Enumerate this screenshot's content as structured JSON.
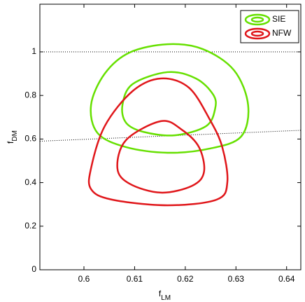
{
  "chart_data": {
    "type": "contour",
    "xlabel": {
      "main": "f",
      "sub": "LM"
    },
    "ylabel": {
      "main": "f",
      "sub": "DM"
    },
    "xlim": [
      0.5913,
      0.6428
    ],
    "ylim": [
      0,
      1.2187
    ],
    "xticks": [
      0.6,
      0.61,
      0.62,
      0.63,
      0.64
    ],
    "yticks": [
      0,
      0.2,
      0.4,
      0.6,
      0.8,
      1
    ],
    "legend": "upper right",
    "reference_lines": [
      {
        "x": [
          0.5913,
          0.6428
        ],
        "y": [
          1,
          1
        ]
      },
      {
        "x": [
          0.5913,
          0.6428
        ],
        "y": [
          0.59,
          0.64
        ]
      }
    ],
    "series": [
      {
        "name": "SIE",
        "color": "#66e000",
        "contours": [
          {
            "x": [
              0.6014,
              0.6041,
              0.609,
              0.6165,
              0.6234,
              0.6296,
              0.6324,
              0.631,
              0.6248,
              0.6165,
              0.6083,
              0.6027
            ],
            "y": [
              0.756,
              0.9,
              0.997,
              1.035,
              1.013,
              0.916,
              0.756,
              0.611,
              0.556,
              0.537,
              0.563,
              0.627
            ]
          },
          {
            "x": [
              0.6076,
              0.6096,
              0.6165,
              0.6221,
              0.6255,
              0.6259,
              0.6241,
              0.6179,
              0.6117,
              0.6083
            ],
            "y": [
              0.756,
              0.852,
              0.907,
              0.878,
              0.804,
              0.74,
              0.659,
              0.617,
              0.633,
              0.675
            ]
          }
        ]
      },
      {
        "name": "NFW",
        "color": "#e0161a",
        "contours": [
          {
            "x": [
              0.6014,
              0.6041,
              0.6096,
              0.6152,
              0.6207,
              0.6248,
              0.6273,
              0.6283,
              0.6262,
              0.6165,
              0.6055,
              0.6014
            ],
            "y": [
              0.466,
              0.659,
              0.82,
              0.878,
              0.836,
              0.691,
              0.563,
              0.402,
              0.322,
              0.296,
              0.322,
              0.37
            ]
          },
          {
            "x": [
              0.6066,
              0.6083,
              0.6152,
              0.6193,
              0.6227,
              0.6237,
              0.6214,
              0.6152,
              0.609
            ],
            "y": [
              0.466,
              0.595,
              0.682,
              0.643,
              0.563,
              0.45,
              0.386,
              0.354,
              0.395
            ]
          }
        ]
      }
    ]
  }
}
